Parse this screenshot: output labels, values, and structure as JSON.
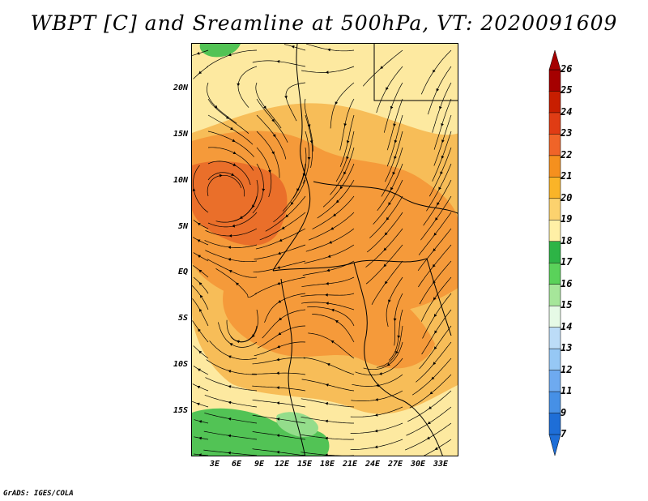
{
  "title": "WBPT [C] and Sreamline at 500hPa, VT: 2020091609",
  "footer": "GrADS: IGES/COLA",
  "y_axis": {
    "labels": [
      "20N",
      "15N",
      "10N",
      "5N",
      "EQ",
      "5S",
      "10S",
      "15S"
    ]
  },
  "x_axis": {
    "labels": [
      "3E",
      "6E",
      "9E",
      "12E",
      "15E",
      "18E",
      "21E",
      "24E",
      "27E",
      "30E",
      "33E"
    ]
  },
  "colorbar": {
    "labels": [
      "26",
      "25",
      "24",
      "23",
      "22",
      "21",
      "20",
      "19",
      "18",
      "17",
      "16",
      "15",
      "14",
      "13",
      "12",
      "11",
      "9",
      "7"
    ],
    "colors": [
      "#a50000",
      "#c81e00",
      "#e03c14",
      "#f06428",
      "#f5901e",
      "#fab428",
      "#fcd26e",
      "#fff0a6",
      "#2db446",
      "#5ad25a",
      "#a6e69a",
      "#e6fae6",
      "#bcdcf7",
      "#96c8f5",
      "#6eaaf0",
      "#4690e6",
      "#1e6ed7"
    ]
  },
  "map": {
    "variable": "WBPT [C]",
    "level": "500hPa",
    "valid_time": "2020091609",
    "colors": {
      "base": "#fde9a0",
      "warm": "#f7bd58",
      "hot": "#f59a3a",
      "hottest": "#ea6f2a",
      "cool": "#52c355",
      "cool_light": "#94dd8b"
    }
  }
}
